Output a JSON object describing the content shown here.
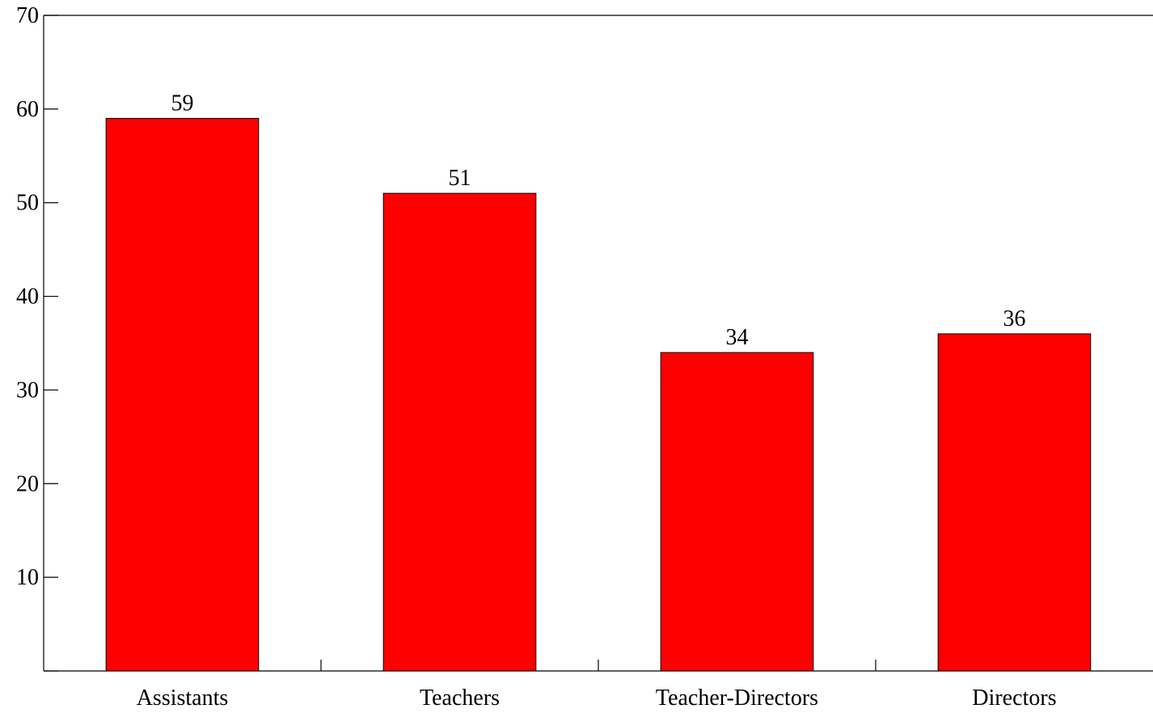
{
  "chart_data": {
    "type": "bar",
    "title": "",
    "xlabel": "",
    "ylabel": "",
    "categories": [
      "Assistants",
      "Teachers",
      "Teacher-Directors",
      "Directors"
    ],
    "values": [
      59,
      51,
      34,
      36
    ],
    "data_labels": [
      "59",
      "51",
      "34",
      "36"
    ],
    "ylim": [
      0,
      70
    ],
    "yticks": [
      10,
      20,
      30,
      40,
      50,
      60,
      70
    ],
    "ytick_labels": [
      "10",
      "20",
      "30",
      "40",
      "50",
      "60",
      "70"
    ],
    "grid": false,
    "legend": "none",
    "bar_color": "#ff0000"
  }
}
